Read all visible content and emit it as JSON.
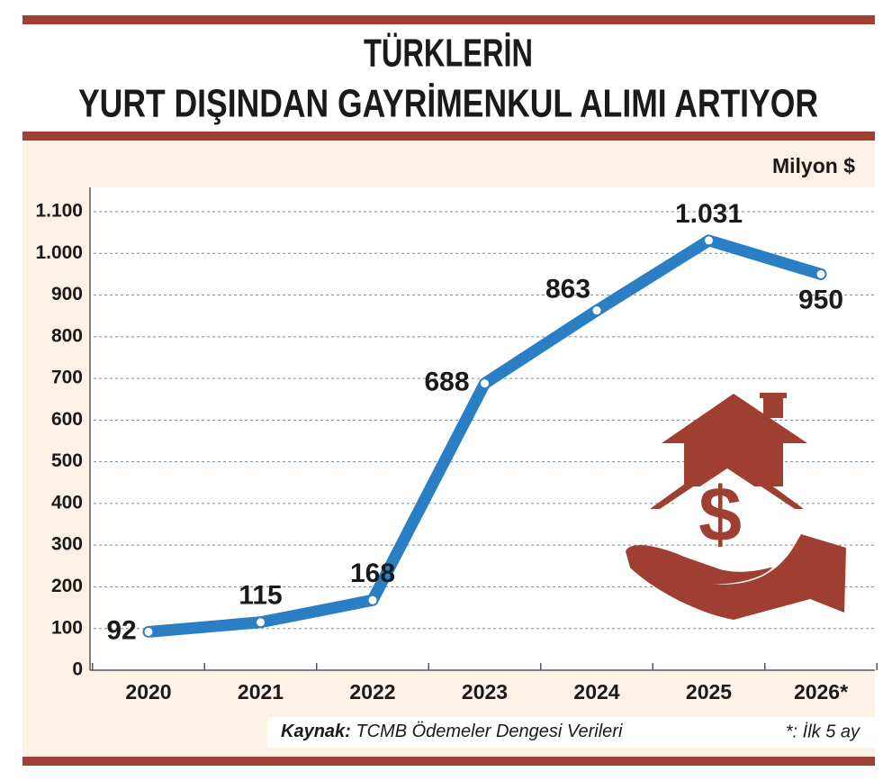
{
  "chart_data": {
    "type": "line",
    "title": [
      "TÜRKLERİN",
      "YURT DIŞINDAN GAYRİMENKUL ALIMI ARTIYOR"
    ],
    "y_label": "Milyon $",
    "categories": [
      "2020",
      "2021",
      "2022",
      "2023",
      "2024",
      "2025",
      "2026*"
    ],
    "values": [
      92,
      115,
      168,
      688,
      863,
      1031,
      950
    ],
    "value_labels": [
      "92",
      "115",
      "168",
      "688",
      "863",
      "1.031",
      "950"
    ],
    "color": "#2a7fc4",
    "ylim": [
      0,
      1100
    ],
    "yticks": [
      0,
      100,
      200,
      300,
      400,
      500,
      600,
      700,
      800,
      900,
      {
        "value": 1000,
        "label": "1.000"
      },
      {
        "value": 1100,
        "label": "1.100"
      }
    ],
    "grid": true,
    "source_label": "Kaynak:",
    "source": "TCMB Ödemeler Dengesi Verileri",
    "note": "*: İlk 5 ay"
  }
}
